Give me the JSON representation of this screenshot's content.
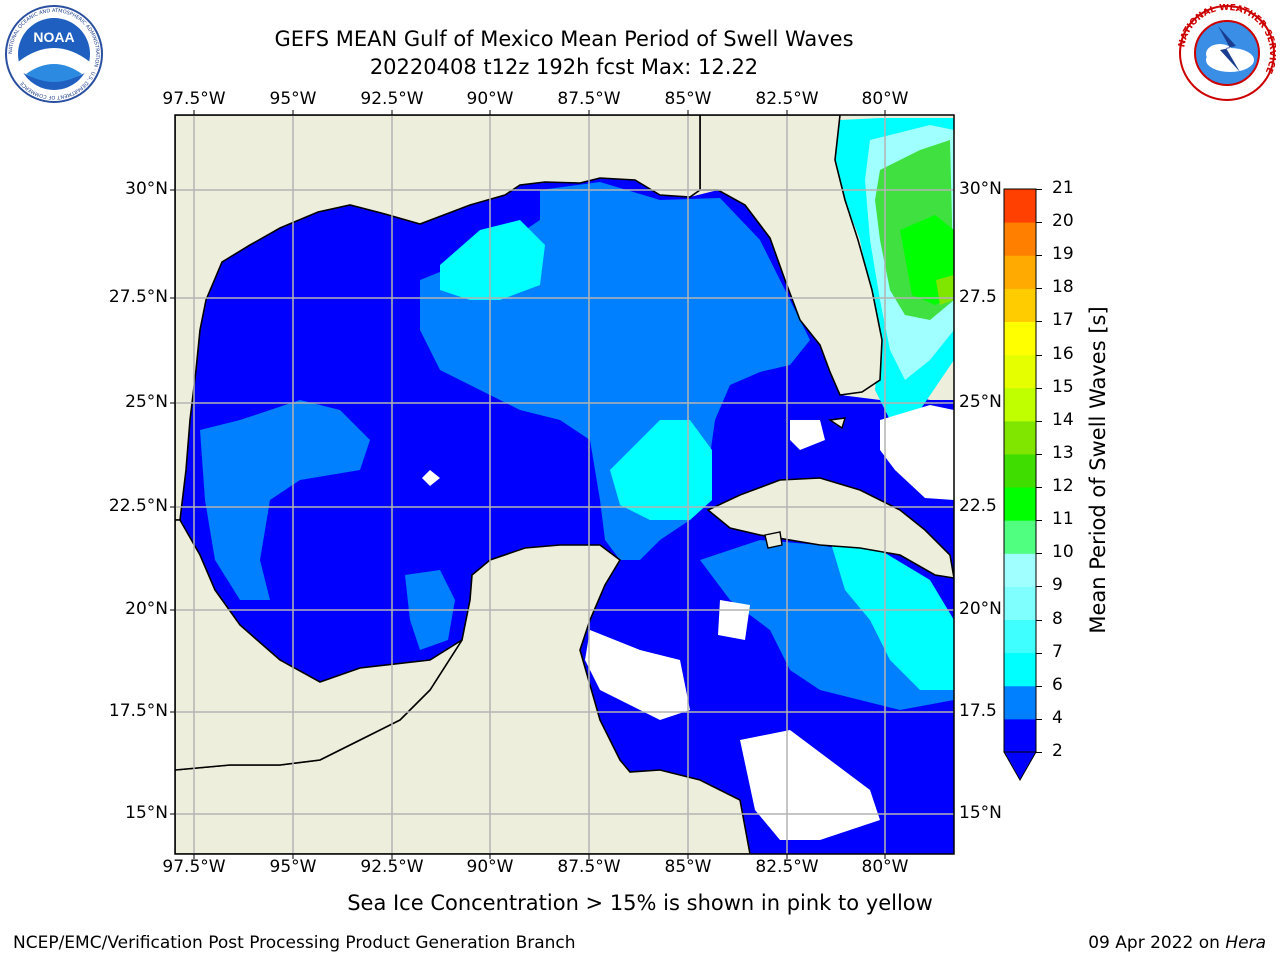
{
  "header": {
    "title_line1": "GEFS MEAN Gulf of Mexico Mean Period of Swell Waves",
    "title_line2": "20220408 t12z 192h fcst   Max: 12.22"
  },
  "logos": {
    "left": "noaa-logo",
    "left_text": "NOAA",
    "left_ring_text": "NATIONAL OCEANIC AND ATMOSPHERIC ADMINISTRATION · U.S. DEPARTMENT OF COMMERCE",
    "right": "nws-logo",
    "right_ring_text": "NATIONAL WEATHER SERVICE"
  },
  "map": {
    "lon_labels_top": [
      "97.5°W",
      "95°W",
      "92.5°W",
      "90°W",
      "87.5°W",
      "85°W",
      "82.5°W",
      "80°W"
    ],
    "lon_labels_bottom": [
      "97.5°W",
      "95°W",
      "92.5°W",
      "90°W",
      "87.5°W",
      "85°W",
      "82.5°W",
      "80°W"
    ],
    "lat_labels_left": [
      "30°N",
      "27.5°N",
      "25°N",
      "22.5°N",
      "20°N",
      "17.5°N",
      "15°N"
    ],
    "lat_labels_right": [
      "30°N",
      "27.5",
      "25°N",
      "22.5",
      "20°N",
      "17.5",
      "15°N"
    ],
    "lon_range": [
      -98.0,
      -78.3
    ],
    "lat_range": [
      14.0,
      31.7
    ],
    "land_color": "#eeeedd",
    "grid_color": "#b4b4b4"
  },
  "colorbar": {
    "label": "Mean Period of Swell Waves [s]",
    "ticks": [
      "2",
      "4",
      "6",
      "7",
      "8",
      "9",
      "10",
      "11",
      "12",
      "13",
      "14",
      "15",
      "16",
      "17",
      "18",
      "19",
      "20",
      "21"
    ],
    "colors": [
      "#0000ff",
      "#0080ff",
      "#00ffff",
      "#40ffff",
      "#80ffff",
      "#a0ffff",
      "#50ff80",
      "#00ff00",
      "#40dd00",
      "#80e600",
      "#c0ff00",
      "#e6ff00",
      "#ffff00",
      "#ffcc00",
      "#ffaa00",
      "#ff8000",
      "#ff4000",
      "#ff0000"
    ],
    "under_color": "#0000ff"
  },
  "note": "Sea Ice Concentration > 15% is shown in pink to yellow",
  "footer": {
    "left": "NCEP/EMC/Verification Post Processing Product Generation Branch",
    "date": "09 Apr 2022 on ",
    "host": "Hera"
  }
}
